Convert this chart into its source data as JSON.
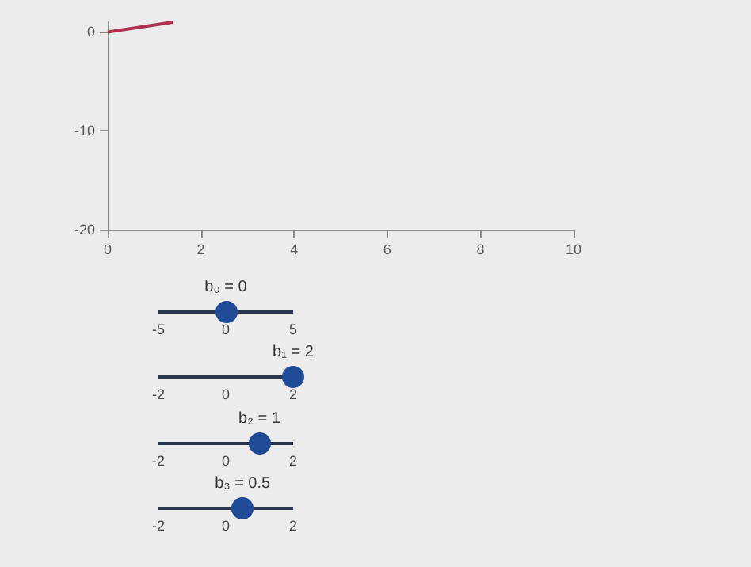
{
  "chart_data": {
    "type": "line",
    "x": [
      0,
      1.4
    ],
    "series": [
      {
        "color": "#b03050",
        "values": [
          0,
          1
        ]
      }
    ],
    "xlim": [
      0,
      10
    ],
    "xticks": [
      0,
      2,
      4,
      6,
      8,
      10
    ],
    "ylim": [
      -20,
      1
    ],
    "yticks": [
      -20,
      -10,
      0
    ],
    "grid": false,
    "marker": "none",
    "line_style": "solid",
    "annotations": [
      "b₀ = 0",
      "-5",
      "0",
      "5",
      "b₁ = 2",
      "-2",
      "0",
      "2",
      "b₂ = 1",
      "-2",
      "0",
      "2",
      "b₃ = 0.5",
      "-2",
      "0",
      "2"
    ]
  }
}
